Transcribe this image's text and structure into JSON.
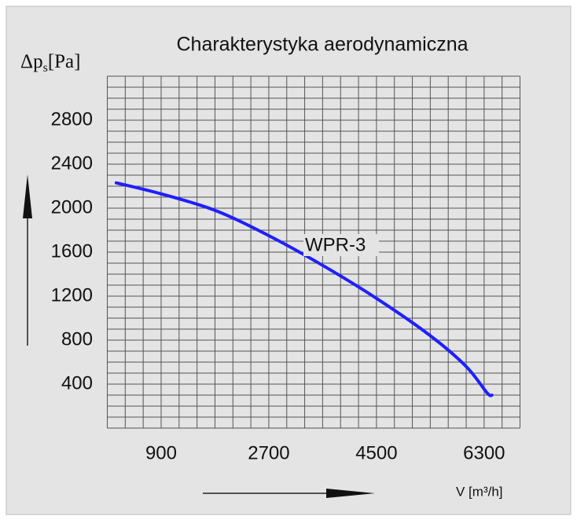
{
  "chart_data": {
    "type": "line",
    "title": "Charakterystyka aerodynamiczna",
    "y_label": {
      "main": "Δp",
      "sub": "s",
      "unit": "[Pa]"
    },
    "x_label": "V [m³/h]",
    "xlim": [
      0,
      6900
    ],
    "ylim": [
      0,
      3200
    ],
    "xticks": [
      900,
      2700,
      4500,
      6300
    ],
    "yticks": [
      400,
      800,
      1200,
      1600,
      2000,
      2400,
      2800
    ],
    "x_grid": [
      0,
      300,
      600,
      900,
      1200,
      1500,
      1800,
      2100,
      2400,
      2700,
      3000,
      3300,
      3600,
      3900,
      4200,
      4500,
      4800,
      5100,
      5400,
      5700,
      6000,
      6300,
      6600,
      6900
    ],
    "y_grid": [
      0,
      100,
      200,
      300,
      400,
      500,
      600,
      700,
      800,
      900,
      1000,
      1100,
      1200,
      1300,
      1400,
      1500,
      1600,
      1700,
      1800,
      1900,
      2000,
      2100,
      2200,
      2300,
      2400,
      2500,
      2600,
      2700,
      2800,
      2900,
      3000,
      3100,
      3200
    ],
    "grid": true,
    "series": [
      {
        "name": "WPR-3",
        "color": "#1f1fff",
        "x": [
          150,
          900,
          1800,
          2700,
          3600,
          4500,
          5400,
          6000,
          6350,
          6430
        ],
        "values": [
          2230,
          2130,
          1980,
          1750,
          1480,
          1180,
          840,
          560,
          320,
          300
        ]
      }
    ]
  }
}
